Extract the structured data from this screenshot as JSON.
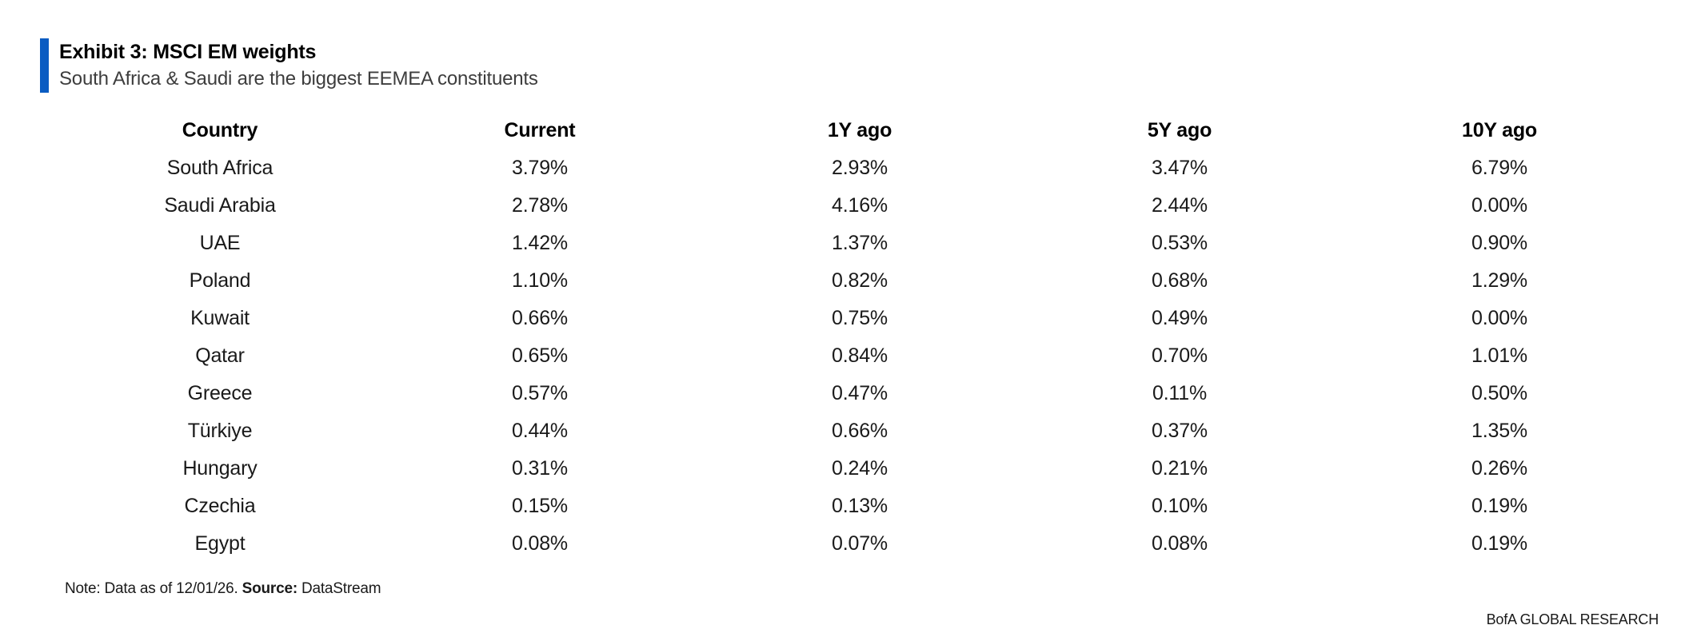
{
  "exhibit": {
    "title": "Exhibit 3: MSCI EM weights",
    "subtitle": "South Africa & Saudi are the biggest EEMEA constituents",
    "accent_color": "#0a5cc2"
  },
  "table": {
    "columns": [
      "Country",
      "Current",
      "1Y ago",
      "5Y ago",
      "10Y ago"
    ],
    "rows": [
      [
        "South Africa",
        "3.79%",
        "2.93%",
        "3.47%",
        "6.79%"
      ],
      [
        "Saudi Arabia",
        "2.78%",
        "4.16%",
        "2.44%",
        "0.00%"
      ],
      [
        "UAE",
        "1.42%",
        "1.37%",
        "0.53%",
        "0.90%"
      ],
      [
        "Poland",
        "1.10%",
        "0.82%",
        "0.68%",
        "1.29%"
      ],
      [
        "Kuwait",
        "0.66%",
        "0.75%",
        "0.49%",
        "0.00%"
      ],
      [
        "Qatar",
        "0.65%",
        "0.84%",
        "0.70%",
        "1.01%"
      ],
      [
        "Greece",
        "0.57%",
        "0.47%",
        "0.11%",
        "0.50%"
      ],
      [
        "Türkiye",
        "0.44%",
        "0.66%",
        "0.37%",
        "1.35%"
      ],
      [
        "Hungary",
        "0.31%",
        "0.24%",
        "0.21%",
        "0.26%"
      ],
      [
        "Czechia",
        "0.15%",
        "0.13%",
        "0.10%",
        "0.19%"
      ],
      [
        "Egypt",
        "0.08%",
        "0.07%",
        "0.08%",
        "0.19%"
      ]
    ]
  },
  "footnote": {
    "note_text": "Note: Data as of 12/01/26.",
    "source_label": "Source:",
    "source_value": "DataStream"
  },
  "footer": {
    "brand": "BofA GLOBAL RESEARCH"
  }
}
